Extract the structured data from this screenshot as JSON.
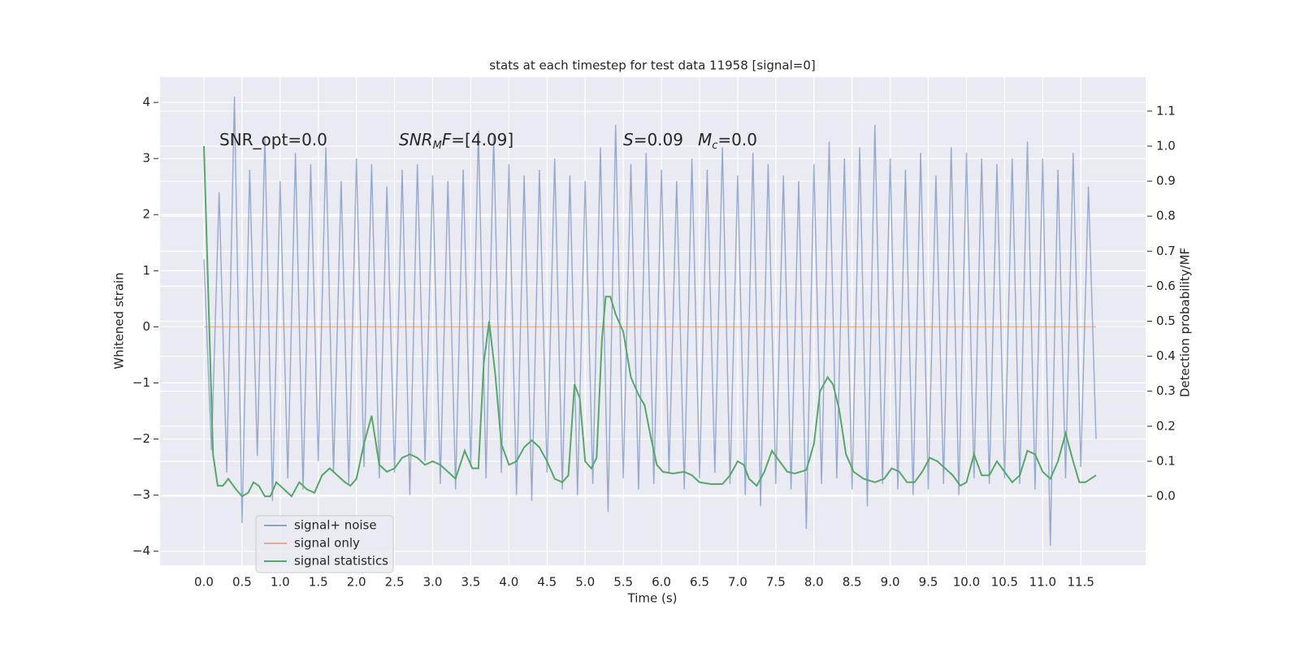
{
  "chart_data": {
    "type": "line",
    "title": "stats at each timestep for test data 11958 [signal=0]",
    "xlabel": "Time (s)",
    "ylabel": "Whitened strain",
    "y2label": "Detection probability/MF",
    "annotations": [
      [
        "SNR_opt=0.0"
      ],
      [
        "SNR",
        "M",
        "F",
        "=[4.09]"
      ],
      [
        "S",
        "=0.09"
      ],
      [
        "M",
        "c",
        "=0.0"
      ]
    ],
    "xlim": [
      -0.575,
      12.35
    ],
    "ylim": [
      -4.25,
      4.45
    ],
    "y2lim": [
      -0.197,
      1.197
    ],
    "xticks": [
      {
        "value": 0,
        "label": "0.0"
      },
      0.5,
      {
        "value": 1,
        "label": "1.0"
      },
      1.5,
      {
        "value": 2,
        "label": "2.0"
      },
      2.5,
      {
        "value": 3,
        "label": "3.0"
      },
      3.5,
      {
        "value": 4,
        "label": "4.0"
      },
      4.5,
      {
        "value": 5,
        "label": "5.0"
      },
      5.5,
      {
        "value": 6,
        "label": "6.0"
      },
      6.5,
      {
        "value": 7,
        "label": "7.0"
      },
      7.5,
      {
        "value": 8,
        "label": "8.0"
      },
      8.5,
      {
        "value": 9,
        "label": "9.0"
      },
      9.5,
      {
        "value": 10,
        "label": "10.0"
      },
      10.5,
      {
        "value": 11,
        "label": "11.0"
      },
      11.5
    ],
    "yticks": [
      {
        "value": -4,
        "label": "−4"
      },
      {
        "value": -3,
        "label": "−3"
      },
      {
        "value": -2,
        "label": "−2"
      },
      {
        "value": -1,
        "label": "−1"
      },
      0,
      1,
      2,
      3,
      4
    ],
    "y2ticks": [
      {
        "value": 0,
        "label": "0.0"
      },
      0.1,
      0.2,
      0.3,
      0.4,
      0.5,
      0.6,
      0.7,
      0.8,
      0.9,
      {
        "value": 1,
        "label": "1.0"
      },
      1.1
    ],
    "grid": true,
    "legend": "lower left",
    "series": [
      {
        "name": "signal+ noise",
        "color": "#4c72b0",
        "x": [
          0,
          0.1,
          0.2,
          0.3,
          0.4,
          0.5,
          0.6,
          0.7,
          0.8,
          0.9,
          1,
          1.1,
          1.2,
          1.3,
          1.4,
          1.5,
          1.6,
          1.7,
          1.8,
          1.9,
          2,
          2.1,
          2.2,
          2.3,
          2.4,
          2.5,
          2.6,
          2.7,
          2.8,
          2.9,
          3,
          3.1,
          3.2,
          3.3,
          3.4,
          3.5,
          3.6,
          3.7,
          3.8,
          3.9,
          4,
          4.1,
          4.2,
          4.3,
          4.4,
          4.5,
          4.6,
          4.7,
          4.8,
          4.9,
          5,
          5.1,
          5.2,
          5.3,
          5.4,
          5.5,
          5.6,
          5.7,
          5.8,
          5.9,
          6,
          6.1,
          6.2,
          6.3,
          6.4,
          6.5,
          6.6,
          6.7,
          6.8,
          6.9,
          7,
          7.1,
          7.2,
          7.3,
          7.4,
          7.5,
          7.6,
          7.7,
          7.8,
          7.9,
          8,
          8.1,
          8.2,
          8.3,
          8.4,
          8.5,
          8.6,
          8.7,
          8.8,
          8.9,
          9,
          9.1,
          9.2,
          9.3,
          9.4,
          9.5,
          9.6,
          9.7,
          9.8,
          9.9,
          10,
          10.1,
          10.2,
          10.3,
          10.4,
          10.5,
          10.6,
          10.7,
          10.8,
          10.9,
          11,
          11.1,
          11.2,
          11.3,
          11.4,
          11.5,
          11.6,
          11.7
        ],
        "values": [
          1.2,
          -2.2,
          2.4,
          -2.6,
          4.1,
          -3.5,
          2.8,
          -2.3,
          3.4,
          -3.1,
          2.6,
          -2.7,
          3.1,
          -2.9,
          2.9,
          -2.4,
          3.2,
          -2.6,
          2.6,
          -2.8,
          3.0,
          -2.5,
          2.9,
          -2.7,
          2.5,
          -2.6,
          2.8,
          -3.0,
          2.9,
          -2.4,
          2.7,
          -2.8,
          2.6,
          -2.9,
          2.8,
          -2.5,
          3.5,
          -2.7,
          3.4,
          -2.6,
          2.9,
          -3.0,
          2.7,
          -3.1,
          2.8,
          -2.6,
          3.0,
          -2.9,
          2.7,
          -3.0,
          2.6,
          -2.8,
          3.2,
          -3.3,
          3.6,
          -2.7,
          2.9,
          -2.9,
          3.1,
          -2.8,
          2.8,
          -2.6,
          2.6,
          -2.9,
          3.0,
          -2.7,
          2.8,
          -2.6,
          3.2,
          -2.8,
          2.7,
          -3.0,
          3.1,
          -3.2,
          2.9,
          -2.8,
          2.7,
          -2.9,
          2.6,
          -3.6,
          2.9,
          -2.8,
          3.3,
          -2.7,
          3.0,
          -2.9,
          3.2,
          -3.2,
          3.6,
          -2.8,
          3.0,
          -2.9,
          2.8,
          -3.0,
          3.1,
          -2.9,
          2.7,
          -2.8,
          3.2,
          -3.0,
          3.1,
          -2.7,
          3.0,
          -2.8,
          2.9,
          -2.7,
          3.0,
          -2.8,
          3.3,
          -2.9,
          3.0,
          -3.9,
          2.8,
          -2.7,
          3.1,
          -2.5,
          2.5,
          -2.0
        ]
      },
      {
        "name": "signal only",
        "color": "#dd8452",
        "x": [
          0,
          11.7
        ],
        "values": [
          0,
          0
        ]
      },
      {
        "name": "signal statistics",
        "color": "#55a868",
        "axis": "y2",
        "x": [
          0,
          0.12,
          0.18,
          0.25,
          0.32,
          0.42,
          0.5,
          0.58,
          0.65,
          0.72,
          0.8,
          0.87,
          0.95,
          1.05,
          1.15,
          1.25,
          1.35,
          1.45,
          1.55,
          1.65,
          1.75,
          1.85,
          1.92,
          2.0,
          2.1,
          2.2,
          2.3,
          2.4,
          2.5,
          2.6,
          2.7,
          2.8,
          2.9,
          3.0,
          3.1,
          3.2,
          3.3,
          3.42,
          3.52,
          3.6,
          3.67,
          3.74,
          3.82,
          3.9,
          4.0,
          4.1,
          4.2,
          4.3,
          4.4,
          4.5,
          4.6,
          4.7,
          4.78,
          4.86,
          4.93,
          5.0,
          5.08,
          5.15,
          5.22,
          5.27,
          5.33,
          5.4,
          5.5,
          5.6,
          5.7,
          5.78,
          5.86,
          5.94,
          6.02,
          6.15,
          6.3,
          6.4,
          6.5,
          6.65,
          6.8,
          6.9,
          7.0,
          7.08,
          7.15,
          7.25,
          7.35,
          7.45,
          7.55,
          7.65,
          7.75,
          7.9,
          8.0,
          8.08,
          8.18,
          8.25,
          8.33,
          8.42,
          8.52,
          8.65,
          8.8,
          8.92,
          9.02,
          9.12,
          9.22,
          9.32,
          9.42,
          9.52,
          9.62,
          9.72,
          9.82,
          9.92,
          10.0,
          10.1,
          10.2,
          10.3,
          10.4,
          10.5,
          10.6,
          10.7,
          10.8,
          10.9,
          11.0,
          11.1,
          11.2,
          11.3,
          11.4,
          11.48,
          11.56,
          11.7
        ],
        "values": [
          1.0,
          0.12,
          0.03,
          0.03,
          0.05,
          0.02,
          0.0,
          0.01,
          0.04,
          0.03,
          0.0,
          0.0,
          0.04,
          0.02,
          0.0,
          0.04,
          0.02,
          0.01,
          0.06,
          0.08,
          0.06,
          0.04,
          0.03,
          0.05,
          0.15,
          0.23,
          0.09,
          0.07,
          0.08,
          0.11,
          0.12,
          0.11,
          0.09,
          0.1,
          0.09,
          0.07,
          0.05,
          0.13,
          0.08,
          0.08,
          0.38,
          0.5,
          0.35,
          0.15,
          0.09,
          0.1,
          0.14,
          0.16,
          0.14,
          0.1,
          0.05,
          0.04,
          0.06,
          0.32,
          0.28,
          0.1,
          0.08,
          0.11,
          0.45,
          0.57,
          0.57,
          0.52,
          0.47,
          0.34,
          0.29,
          0.26,
          0.17,
          0.09,
          0.07,
          0.065,
          0.07,
          0.06,
          0.04,
          0.035,
          0.035,
          0.06,
          0.1,
          0.09,
          0.05,
          0.03,
          0.07,
          0.13,
          0.1,
          0.07,
          0.065,
          0.075,
          0.15,
          0.3,
          0.34,
          0.32,
          0.25,
          0.12,
          0.07,
          0.05,
          0.04,
          0.05,
          0.08,
          0.07,
          0.04,
          0.04,
          0.07,
          0.11,
          0.1,
          0.08,
          0.06,
          0.03,
          0.04,
          0.12,
          0.06,
          0.06,
          0.1,
          0.07,
          0.04,
          0.06,
          0.13,
          0.12,
          0.07,
          0.05,
          0.1,
          0.18,
          0.1,
          0.04,
          0.04,
          0.06
        ]
      }
    ]
  }
}
